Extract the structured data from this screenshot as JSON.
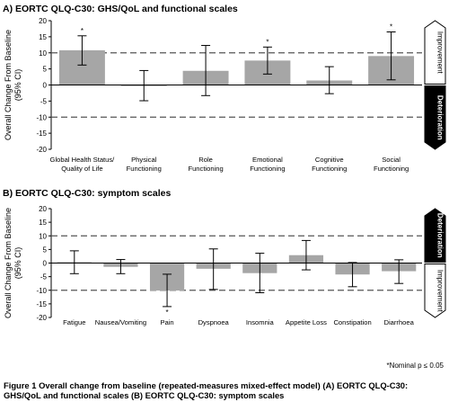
{
  "chart_data": [
    {
      "type": "bar",
      "title": "A) EORTC QLQ-C30: GHS/QoL and functional scales",
      "ylabel_line1": "Overall Change From Baseline",
      "ylabel_line2": "(95% CI)",
      "ylim": [
        -20,
        20
      ],
      "yticks": [
        -20,
        -15,
        -10,
        -5,
        0,
        5,
        10,
        15,
        20
      ],
      "reference_lines": [
        10,
        -10
      ],
      "grid": false,
      "categories": [
        [
          "Global Health Status/",
          "Quality of Life"
        ],
        [
          "Physical",
          "Functioning"
        ],
        [
          "Role",
          "Functioning"
        ],
        [
          "Emotional",
          "Functioning"
        ],
        [
          "Cognitive",
          "Functioning"
        ],
        [
          "Social",
          "Functioning"
        ]
      ],
      "values": [
        10.8,
        -0.2,
        4.4,
        7.6,
        1.4,
        9.0
      ],
      "ci_lower": [
        6.2,
        -4.9,
        -3.3,
        3.4,
        -2.7,
        1.6
      ],
      "ci_upper": [
        15.3,
        4.5,
        12.3,
        11.8,
        5.7,
        16.5
      ],
      "significant": [
        true,
        false,
        false,
        true,
        false,
        true
      ],
      "significance_marker": "*",
      "side_labels": {
        "upper": "Improvement",
        "lower": "Deterioration",
        "highlighted": "lower"
      }
    },
    {
      "type": "bar",
      "title": "B) EORTC QLQ-C30: symptom scales",
      "ylabel_line1": "Overall Change From Baseline",
      "ylabel_line2": "(95% CI)",
      "ylim": [
        -20,
        20
      ],
      "yticks": [
        -20,
        -15,
        -10,
        -5,
        0,
        5,
        10,
        15,
        20
      ],
      "reference_lines": [
        10,
        -10
      ],
      "grid": false,
      "categories": [
        [
          "Fatigue"
        ],
        [
          "Nausea/Vomiting"
        ],
        [
          "Pain"
        ],
        [
          "Dyspnoea"
        ],
        [
          "Insomnia"
        ],
        [
          "Appetite Loss"
        ],
        [
          "Constipation"
        ],
        [
          "Diarrhoea"
        ]
      ],
      "values": [
        0.3,
        -1.4,
        -10.1,
        -2.1,
        -3.7,
        2.9,
        -4.2,
        -3.0
      ],
      "ci_lower": [
        -3.9,
        -3.9,
        -16.0,
        -9.7,
        -10.9,
        -2.5,
        -8.7,
        -7.5
      ],
      "ci_upper": [
        4.5,
        1.3,
        -4.1,
        5.2,
        3.6,
        8.3,
        0.2,
        1.2
      ],
      "significant": [
        false,
        false,
        true,
        false,
        false,
        false,
        false,
        false
      ],
      "significance_marker": "*",
      "side_labels": {
        "upper": "Deterioration",
        "lower": "Improvement",
        "highlighted": "upper"
      }
    }
  ],
  "footnote": "*Nominal p ≤ 0.05",
  "caption": "Figure 1 Overall change from baseline (repeated-measures mixed-effect model) (A) EORTC QLQ-C30: GHS/QoL and functional scales (B) EORTC QLQ-C30: symptom scales",
  "colors": {
    "bar": "#a6a6a6",
    "axis": "#000000",
    "dashed": "#555555",
    "highlight_fill": "#000000"
  }
}
